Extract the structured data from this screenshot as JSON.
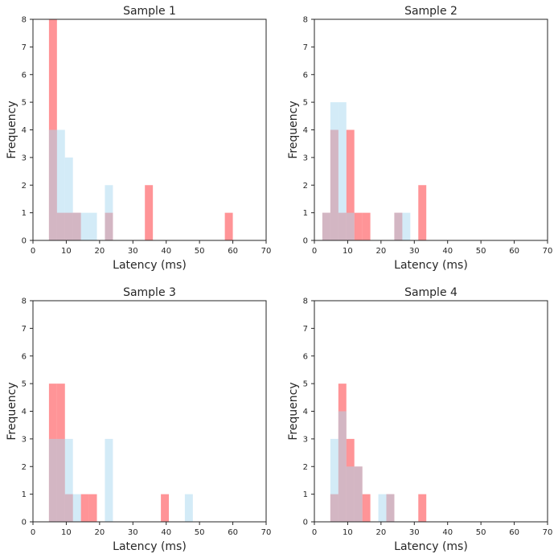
{
  "figure": {
    "background": "#ffffff",
    "colors": {
      "red_series": "#ff5a5f",
      "blue_series": "#a7d8f0",
      "overlap_note": "overlapping translucent bars appear mauve",
      "axis": "#262626"
    }
  },
  "chart_data": [
    {
      "type": "bar",
      "subtype": "overlaid-histogram",
      "title": "Sample 1",
      "xlabel": "Latency (ms)",
      "ylabel": "Frequency",
      "xlim": [
        0,
        70
      ],
      "ylim": [
        0,
        8
      ],
      "xticks": [
        "0",
        "10",
        "20",
        "30",
        "40",
        "50",
        "60",
        "70"
      ],
      "yticks": [
        "0",
        "1",
        "2",
        "3",
        "4",
        "5",
        "6",
        "7",
        "8"
      ],
      "grid": false,
      "series": [
        {
          "name": "red",
          "color": "#ff5a5f",
          "bins": [
            {
              "x0": 4.8,
              "x1": 7.2,
              "value": 8
            },
            {
              "x0": 7.2,
              "x1": 9.6,
              "value": 1
            },
            {
              "x0": 9.6,
              "x1": 12.0,
              "value": 1
            },
            {
              "x0": 12.0,
              "x1": 14.4,
              "value": 1
            },
            {
              "x0": 21.6,
              "x1": 24.0,
              "value": 1
            },
            {
              "x0": 33.6,
              "x1": 36.0,
              "value": 2
            },
            {
              "x0": 57.6,
              "x1": 60.0,
              "value": 1
            }
          ]
        },
        {
          "name": "blue",
          "color": "#a7d8f0",
          "bins": [
            {
              "x0": 4.8,
              "x1": 7.2,
              "value": 4
            },
            {
              "x0": 7.2,
              "x1": 9.6,
              "value": 4
            },
            {
              "x0": 9.6,
              "x1": 12.0,
              "value": 3
            },
            {
              "x0": 12.0,
              "x1": 14.4,
              "value": 1
            },
            {
              "x0": 14.4,
              "x1": 16.8,
              "value": 1
            },
            {
              "x0": 16.8,
              "x1": 19.2,
              "value": 1
            },
            {
              "x0": 21.6,
              "x1": 24.0,
              "value": 2
            }
          ]
        }
      ]
    },
    {
      "type": "bar",
      "subtype": "overlaid-histogram",
      "title": "Sample 2",
      "xlabel": "Latency (ms)",
      "ylabel": "Frequency",
      "xlim": [
        0,
        70
      ],
      "ylim": [
        0,
        8
      ],
      "xticks": [
        "0",
        "10",
        "20",
        "30",
        "40",
        "50",
        "60",
        "70"
      ],
      "yticks": [
        "0",
        "1",
        "2",
        "3",
        "4",
        "5",
        "6",
        "7",
        "8"
      ],
      "grid": false,
      "series": [
        {
          "name": "red",
          "color": "#ff5a5f",
          "bins": [
            {
              "x0": 2.4,
              "x1": 4.8,
              "value": 1
            },
            {
              "x0": 4.8,
              "x1": 7.2,
              "value": 4
            },
            {
              "x0": 7.2,
              "x1": 9.6,
              "value": 1
            },
            {
              "x0": 9.6,
              "x1": 12.0,
              "value": 4
            },
            {
              "x0": 12.0,
              "x1": 14.4,
              "value": 1
            },
            {
              "x0": 14.4,
              "x1": 16.8,
              "value": 1
            },
            {
              "x0": 24.0,
              "x1": 26.4,
              "value": 1
            },
            {
              "x0": 31.2,
              "x1": 33.6,
              "value": 2
            }
          ]
        },
        {
          "name": "blue",
          "color": "#a7d8f0",
          "bins": [
            {
              "x0": 2.4,
              "x1": 4.8,
              "value": 1
            },
            {
              "x0": 4.8,
              "x1": 7.2,
              "value": 5
            },
            {
              "x0": 7.2,
              "x1": 9.6,
              "value": 5
            },
            {
              "x0": 9.6,
              "x1": 12.0,
              "value": 1
            },
            {
              "x0": 24.0,
              "x1": 26.4,
              "value": 1
            },
            {
              "x0": 26.4,
              "x1": 28.8,
              "value": 1
            }
          ]
        }
      ]
    },
    {
      "type": "bar",
      "subtype": "overlaid-histogram",
      "title": "Sample 3",
      "xlabel": "Latency (ms)",
      "ylabel": "Frequency",
      "xlim": [
        0,
        70
      ],
      "ylim": [
        0,
        8
      ],
      "xticks": [
        "0",
        "10",
        "20",
        "30",
        "40",
        "50",
        "60",
        "70"
      ],
      "yticks": [
        "0",
        "1",
        "2",
        "3",
        "4",
        "5",
        "6",
        "7",
        "8"
      ],
      "grid": false,
      "series": [
        {
          "name": "red",
          "color": "#ff5a5f",
          "bins": [
            {
              "x0": 4.8,
              "x1": 7.2,
              "value": 5
            },
            {
              "x0": 7.2,
              "x1": 9.6,
              "value": 5
            },
            {
              "x0": 9.6,
              "x1": 12.0,
              "value": 1
            },
            {
              "x0": 14.4,
              "x1": 16.8,
              "value": 1
            },
            {
              "x0": 16.8,
              "x1": 19.2,
              "value": 1
            },
            {
              "x0": 38.4,
              "x1": 40.8,
              "value": 1
            }
          ]
        },
        {
          "name": "blue",
          "color": "#a7d8f0",
          "bins": [
            {
              "x0": 4.8,
              "x1": 7.2,
              "value": 3
            },
            {
              "x0": 7.2,
              "x1": 9.6,
              "value": 3
            },
            {
              "x0": 9.6,
              "x1": 12.0,
              "value": 3
            },
            {
              "x0": 12.0,
              "x1": 14.4,
              "value": 1
            },
            {
              "x0": 21.6,
              "x1": 24.0,
              "value": 3
            },
            {
              "x0": 45.6,
              "x1": 48.0,
              "value": 1
            }
          ]
        }
      ]
    },
    {
      "type": "bar",
      "subtype": "overlaid-histogram",
      "title": "Sample 4",
      "xlabel": "Latency (ms)",
      "ylabel": "Frequency",
      "xlim": [
        0,
        70
      ],
      "ylim": [
        0,
        8
      ],
      "xticks": [
        "0",
        "10",
        "20",
        "30",
        "40",
        "50",
        "60",
        "70"
      ],
      "yticks": [
        "0",
        "1",
        "2",
        "3",
        "4",
        "5",
        "6",
        "7",
        "8"
      ],
      "grid": false,
      "series": [
        {
          "name": "red",
          "color": "#ff5a5f",
          "bins": [
            {
              "x0": 4.8,
              "x1": 7.2,
              "value": 1
            },
            {
              "x0": 7.2,
              "x1": 9.6,
              "value": 5
            },
            {
              "x0": 9.6,
              "x1": 12.0,
              "value": 3
            },
            {
              "x0": 12.0,
              "x1": 14.4,
              "value": 2
            },
            {
              "x0": 14.4,
              "x1": 16.8,
              "value": 1
            },
            {
              "x0": 21.6,
              "x1": 24.0,
              "value": 1
            },
            {
              "x0": 31.2,
              "x1": 33.6,
              "value": 1
            }
          ]
        },
        {
          "name": "blue",
          "color": "#a7d8f0",
          "bins": [
            {
              "x0": 4.8,
              "x1": 7.2,
              "value": 3
            },
            {
              "x0": 7.2,
              "x1": 9.6,
              "value": 4
            },
            {
              "x0": 9.6,
              "x1": 12.0,
              "value": 2
            },
            {
              "x0": 12.0,
              "x1": 14.4,
              "value": 2
            },
            {
              "x0": 19.2,
              "x1": 21.6,
              "value": 1
            },
            {
              "x0": 21.6,
              "x1": 24.0,
              "value": 1
            }
          ]
        }
      ]
    }
  ]
}
